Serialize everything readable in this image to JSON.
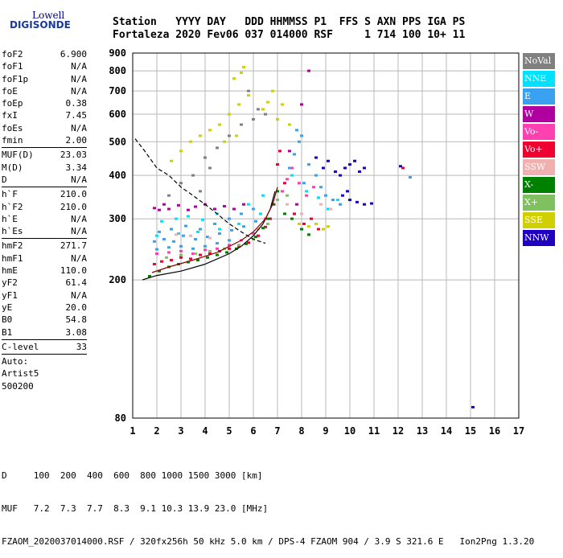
{
  "logo": {
    "line1": "Lowell",
    "line2": "DIGISONDE"
  },
  "header": {
    "line1": "Station   YYYY DAY   DDD HHMMSS P1  FFS S AXN PPS IGA PS",
    "line2": "Fortaleza 2020 Fev06 037 014000 RSF     1 714 100 10+ 11"
  },
  "params": {
    "group1": [
      {
        "name": "foF2",
        "value": "6.900"
      },
      {
        "name": "foF1",
        "value": "N/A"
      },
      {
        "name": "foF1p",
        "value": "N/A"
      },
      {
        "name": "foE",
        "value": "N/A"
      },
      {
        "name": "foEp",
        "value": "0.38"
      },
      {
        "name": "fxI",
        "value": "7.45"
      },
      {
        "name": "foEs",
        "value": "N/A"
      },
      {
        "name": "fmin",
        "value": "2.00"
      }
    ],
    "group2": [
      {
        "name": "MUF(D)",
        "value": "23.03"
      },
      {
        "name": "M(D)",
        "value": "3.34"
      },
      {
        "name": "D",
        "value": "N/A"
      }
    ],
    "group3": [
      {
        "name": "h`F",
        "value": "210.0"
      },
      {
        "name": "h`F2",
        "value": "210.0"
      },
      {
        "name": "h`E",
        "value": "N/A"
      },
      {
        "name": "h`Es",
        "value": "N/A"
      }
    ],
    "group4": [
      {
        "name": "hmF2",
        "value": "271.7"
      },
      {
        "name": "hmF1",
        "value": "N/A"
      },
      {
        "name": "hmE",
        "value": "110.0"
      },
      {
        "name": "yF2",
        "value": "61.4"
      },
      {
        "name": "yF1",
        "value": "N/A"
      },
      {
        "name": "yE",
        "value": "20.0"
      },
      {
        "name": "B0",
        "value": "54.8"
      },
      {
        "name": "B1",
        "value": "3.08"
      }
    ],
    "group5": [
      {
        "name": "C-level",
        "value": "33"
      }
    ],
    "auto": [
      "Auto:",
      "Artist5",
      "500200"
    ]
  },
  "legend": [
    {
      "label": "NoVal",
      "color": "#808080"
    },
    {
      "label": "NNE",
      "color": "#00e0ff"
    },
    {
      "label": "E",
      "color": "#3aa0f0"
    },
    {
      "label": "W",
      "color": "#b000a0"
    },
    {
      "label": "Vo-",
      "color": "#ff40b0"
    },
    {
      "label": "Vo+",
      "color": "#f00030"
    },
    {
      "label": "SSW",
      "color": "#f0b0b0"
    },
    {
      "label": "X-",
      "color": "#008000"
    },
    {
      "label": "X+",
      "color": "#80c060"
    },
    {
      "label": "SSE",
      "color": "#d0d000"
    },
    {
      "label": "NNW",
      "color": "#2000c0"
    }
  ],
  "footer": {
    "line1": "D     100  200  400  600  800 1000 1500 3000 [km]",
    "line2": "MUF   7.2  7.3  7.7  8.3  9.1 10.3 13.9 23.0 [MHz]",
    "line3": "FZAOM_2020037014000.RSF / 320fx256h 50 kHz 5.0 km / DPS-4 FZAOM 904 / 3.9 S 321.6 E   Ion2Png 1.3.20"
  },
  "chart_data": {
    "type": "scatter",
    "x_scale": "linear",
    "y_scale": "log",
    "xlim": [
      1,
      17
    ],
    "ylim": [
      80,
      900
    ],
    "x_ticks": [
      1,
      2,
      3,
      4,
      5,
      6,
      7,
      8,
      9,
      10,
      11,
      12,
      13,
      14,
      15,
      16,
      17
    ],
    "y_ticks": [
      80,
      200,
      300,
      400,
      500,
      600,
      700,
      800,
      900
    ],
    "grid": true,
    "legend_position": "right",
    "series": [
      {
        "name": "E",
        "points": [
          [
            1.9,
            258
          ],
          [
            2.3,
            262
          ],
          [
            2.7,
            258
          ],
          [
            3.1,
            268
          ],
          [
            3.6,
            262
          ],
          [
            4.1,
            266
          ],
          [
            4.6,
            272
          ],
          [
            5.1,
            278
          ],
          [
            5.6,
            285
          ],
          [
            6.1,
            295
          ],
          [
            2.1,
            275
          ],
          [
            2.6,
            280
          ],
          [
            3.2,
            286
          ],
          [
            3.8,
            280
          ],
          [
            4.4,
            290
          ],
          [
            5.0,
            300
          ],
          [
            5.5,
            310
          ],
          [
            6.0,
            320
          ],
          [
            2.0,
            245
          ],
          [
            2.5,
            248
          ],
          [
            3.0,
            250
          ],
          [
            3.5,
            246
          ],
          [
            4.0,
            250
          ],
          [
            4.5,
            255
          ],
          [
            5.0,
            260
          ],
          [
            7.5,
            420
          ],
          [
            7.7,
            460
          ],
          [
            7.9,
            500
          ],
          [
            8.1,
            380
          ],
          [
            8.3,
            430
          ],
          [
            8.6,
            400
          ],
          [
            8.8,
            370
          ],
          [
            9.0,
            350
          ],
          [
            9.3,
            340
          ],
          [
            9.6,
            330
          ],
          [
            7.8,
            540
          ],
          [
            8.0,
            520
          ],
          [
            12.5,
            395
          ]
        ]
      },
      {
        "name": "NNE",
        "points": [
          [
            2.2,
            295
          ],
          [
            2.8,
            300
          ],
          [
            3.3,
            305
          ],
          [
            3.9,
            298
          ],
          [
            4.5,
            310
          ],
          [
            5.2,
            320
          ],
          [
            5.8,
            330
          ],
          [
            6.4,
            350
          ],
          [
            2.0,
            268
          ],
          [
            2.9,
            272
          ],
          [
            3.7,
            275
          ],
          [
            4.6,
            280
          ],
          [
            5.4,
            290
          ],
          [
            6.3,
            310
          ],
          [
            7.6,
            400
          ],
          [
            8.2,
            360
          ],
          [
            8.7,
            345
          ],
          [
            9.1,
            320
          ],
          [
            9.5,
            340
          ]
        ]
      },
      {
        "name": "W",
        "points": [
          [
            1.9,
            322
          ],
          [
            2.1,
            318
          ],
          [
            2.3,
            330
          ],
          [
            2.5,
            320
          ],
          [
            2.9,
            328
          ],
          [
            3.3,
            318
          ],
          [
            3.6,
            325
          ],
          [
            4.0,
            330
          ],
          [
            4.4,
            320
          ],
          [
            4.8,
            326
          ],
          [
            5.2,
            320
          ],
          [
            5.6,
            330
          ],
          [
            7.5,
            470
          ],
          [
            7.8,
            330
          ],
          [
            8.0,
            640
          ],
          [
            8.3,
            800
          ]
        ]
      },
      {
        "name": "Vo-",
        "points": [
          [
            2.0,
            238
          ],
          [
            2.5,
            240
          ],
          [
            3.0,
            242
          ],
          [
            3.5,
            238
          ],
          [
            4.0,
            244
          ],
          [
            4.5,
            246
          ],
          [
            5.0,
            252
          ],
          [
            5.5,
            260
          ],
          [
            6.0,
            272
          ],
          [
            6.5,
            300
          ],
          [
            7.2,
            360
          ],
          [
            7.4,
            390
          ],
          [
            7.6,
            420
          ],
          [
            7.9,
            380
          ],
          [
            8.2,
            350
          ],
          [
            8.5,
            370
          ]
        ]
      },
      {
        "name": "Vo+",
        "points": [
          [
            1.9,
            222
          ],
          [
            2.2,
            226
          ],
          [
            2.6,
            228
          ],
          [
            3.0,
            232
          ],
          [
            3.4,
            230
          ],
          [
            3.8,
            236
          ],
          [
            4.2,
            238
          ],
          [
            4.6,
            242
          ],
          [
            5.0,
            246
          ],
          [
            5.4,
            250
          ],
          [
            5.8,
            256
          ],
          [
            6.2,
            268
          ],
          [
            6.5,
            284
          ],
          [
            6.7,
            300
          ],
          [
            6.85,
            330
          ],
          [
            7.0,
            430
          ],
          [
            7.1,
            470
          ],
          [
            7.3,
            380
          ],
          [
            7.7,
            310
          ],
          [
            8.1,
            290
          ],
          [
            8.4,
            300
          ],
          [
            8.7,
            280
          ],
          [
            12.2,
            420
          ]
        ]
      },
      {
        "name": "SSW",
        "points": [
          [
            2.8,
            270
          ],
          [
            3.4,
            268
          ],
          [
            4.2,
            264
          ],
          [
            6.2,
            280
          ],
          [
            7.4,
            330
          ],
          [
            8.0,
            310
          ],
          [
            8.8,
            330
          ],
          [
            9.2,
            320
          ]
        ]
      },
      {
        "name": "X-",
        "points": [
          [
            1.7,
            205
          ],
          [
            2.1,
            212
          ],
          [
            2.5,
            218
          ],
          [
            2.9,
            222
          ],
          [
            3.3,
            225
          ],
          [
            3.7,
            228
          ],
          [
            4.1,
            232
          ],
          [
            4.5,
            236
          ],
          [
            4.9,
            240
          ],
          [
            5.3,
            246
          ],
          [
            5.7,
            254
          ],
          [
            6.1,
            266
          ],
          [
            6.4,
            282
          ],
          [
            6.6,
            300
          ],
          [
            6.8,
            330
          ],
          [
            7.0,
            360
          ],
          [
            7.3,
            310
          ],
          [
            7.6,
            300
          ],
          [
            8.0,
            280
          ],
          [
            8.3,
            270
          ]
        ]
      },
      {
        "name": "X+",
        "points": [
          [
            2.4,
            232
          ],
          [
            3.0,
            236
          ],
          [
            3.6,
            238
          ],
          [
            4.2,
            242
          ],
          [
            4.8,
            246
          ],
          [
            5.4,
            252
          ],
          [
            6.0,
            262
          ],
          [
            6.6,
            290
          ],
          [
            7.0,
            340
          ],
          [
            7.4,
            350
          ]
        ]
      },
      {
        "name": "SSE",
        "points": [
          [
            2.6,
            440
          ],
          [
            3.0,
            470
          ],
          [
            3.4,
            500
          ],
          [
            3.8,
            520
          ],
          [
            4.2,
            540
          ],
          [
            4.6,
            560
          ],
          [
            5.0,
            600
          ],
          [
            5.4,
            640
          ],
          [
            5.8,
            680
          ],
          [
            6.4,
            620
          ],
          [
            6.6,
            650
          ],
          [
            6.8,
            700
          ],
          [
            7.0,
            580
          ],
          [
            5.2,
            760
          ],
          [
            5.5,
            790
          ],
          [
            5.6,
            820
          ],
          [
            7.2,
            640
          ],
          [
            7.5,
            560
          ],
          [
            7.9,
            290
          ],
          [
            8.3,
            285
          ],
          [
            8.6,
            290
          ],
          [
            8.9,
            280
          ],
          [
            9.1,
            285
          ],
          [
            4.8,
            500
          ],
          [
            5.3,
            520
          ]
        ]
      },
      {
        "name": "NNW",
        "points": [
          [
            8.6,
            450
          ],
          [
            8.9,
            420
          ],
          [
            9.1,
            440
          ],
          [
            9.4,
            410
          ],
          [
            9.6,
            400
          ],
          [
            9.8,
            420
          ],
          [
            10.0,
            430
          ],
          [
            10.2,
            440
          ],
          [
            10.4,
            410
          ],
          [
            10.6,
            420
          ],
          [
            9.7,
            350
          ],
          [
            10.0,
            340
          ],
          [
            10.3,
            335
          ],
          [
            10.6,
            330
          ],
          [
            10.9,
            332
          ],
          [
            9.9,
            360
          ],
          [
            12.1,
            425
          ],
          [
            15.1,
            86
          ]
        ]
      },
      {
        "name": "NoVal",
        "points": [
          [
            3.5,
            400
          ],
          [
            4.0,
            450
          ],
          [
            4.5,
            480
          ],
          [
            5.0,
            520
          ],
          [
            5.5,
            560
          ],
          [
            6.0,
            580
          ],
          [
            6.5,
            600
          ],
          [
            3.0,
            380
          ],
          [
            2.5,
            350
          ],
          [
            5.8,
            700
          ],
          [
            6.2,
            620
          ],
          [
            4.2,
            420
          ],
          [
            3.8,
            360
          ]
        ]
      }
    ],
    "curves": [
      {
        "name": "trace",
        "color": "#000000",
        "dashed": false,
        "points": [
          [
            1.4,
            200
          ],
          [
            2.0,
            206
          ],
          [
            3.0,
            212
          ],
          [
            4.0,
            222
          ],
          [
            5.0,
            238
          ],
          [
            5.5,
            250
          ],
          [
            6.0,
            268
          ],
          [
            6.4,
            290
          ],
          [
            6.7,
            320
          ],
          [
            6.9,
            360
          ]
        ]
      },
      {
        "name": "trace",
        "color": "#8b0000",
        "dashed": false,
        "points": [
          [
            1.8,
            210
          ],
          [
            2.5,
            218
          ],
          [
            3.5,
            228
          ],
          [
            4.5,
            240
          ],
          [
            5.5,
            260
          ],
          [
            6.0,
            275
          ],
          [
            6.5,
            300
          ],
          [
            6.8,
            330
          ],
          [
            7.0,
            370
          ]
        ]
      },
      {
        "name": "trace",
        "color": "#000000",
        "dashed": true,
        "points": [
          [
            1.1,
            510
          ],
          [
            1.5,
            470
          ],
          [
            2.0,
            420
          ],
          [
            2.5,
            400
          ],
          [
            3.0,
            370
          ],
          [
            3.5,
            350
          ],
          [
            4.0,
            330
          ],
          [
            4.5,
            310
          ],
          [
            5.0,
            290
          ],
          [
            5.5,
            275
          ],
          [
            6.0,
            262
          ],
          [
            6.5,
            255
          ]
        ]
      }
    ]
  }
}
